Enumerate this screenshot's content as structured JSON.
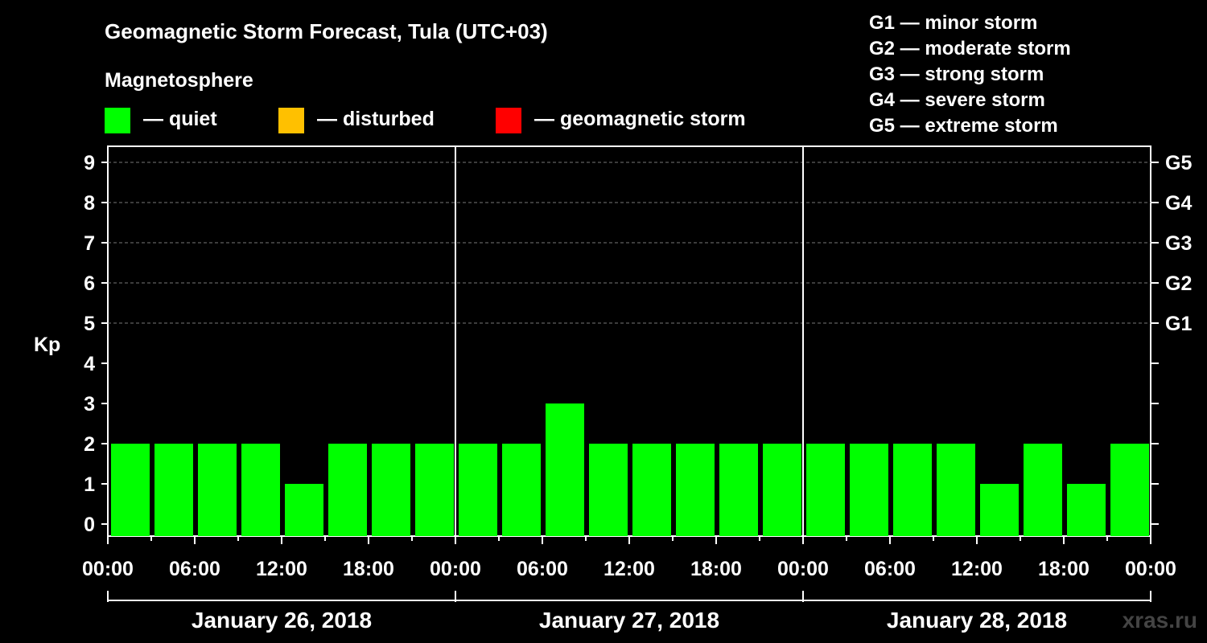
{
  "chart_data": {
    "type": "bar",
    "title": "Geomagnetic Storm Forecast, Tula (UTC+03)",
    "subtitle": "Magnetosphere",
    "ylabel": "Kp",
    "ylim": [
      0,
      9
    ],
    "y_ticks": [
      "0",
      "1",
      "2",
      "3",
      "4",
      "5",
      "6",
      "7",
      "8",
      "9"
    ],
    "right_ticks": [
      {
        "value": 5,
        "label": "G1"
      },
      {
        "value": 6,
        "label": "G2"
      },
      {
        "value": 7,
        "label": "G3"
      },
      {
        "value": 8,
        "label": "G4"
      },
      {
        "value": 9,
        "label": "G5"
      }
    ],
    "x_tick_labels": [
      "00:00",
      "06:00",
      "12:00",
      "18:00",
      "00:00",
      "06:00",
      "12:00",
      "18:00",
      "00:00",
      "06:00",
      "12:00",
      "18:00",
      "00:00"
    ],
    "days": [
      "January 26, 2018",
      "January 27, 2018",
      "January 28, 2018"
    ],
    "values": [
      2,
      2,
      2,
      2,
      1,
      2,
      2,
      2,
      2,
      2,
      3,
      2,
      2,
      2,
      2,
      2,
      2,
      2,
      2,
      2,
      1,
      2,
      1,
      2
    ],
    "legend": [
      {
        "label": "— quiet",
        "color": "#00ff00"
      },
      {
        "label": "— disturbed",
        "color": "#ffc000"
      },
      {
        "label": "— geomagnetic storm",
        "color": "#ff0000"
      }
    ],
    "storm_levels": [
      "G1 — minor storm",
      "G2 — moderate storm",
      "G3 — strong storm",
      "G4 — severe storm",
      "G5 — extreme storm"
    ],
    "grid": true
  },
  "watermark": "xras.ru"
}
